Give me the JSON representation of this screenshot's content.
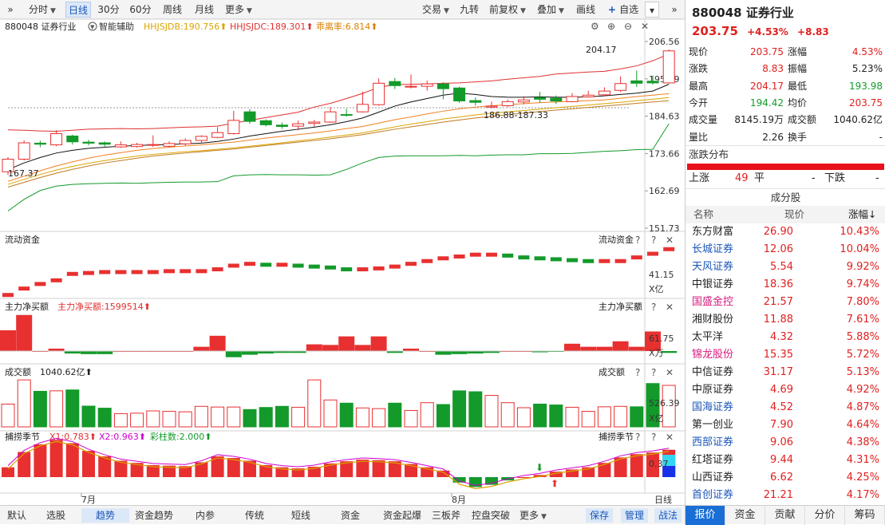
{
  "toolbar": {
    "left": [
      {
        "label": "分时",
        "caret": true
      },
      {
        "label": "日线",
        "active": true
      },
      {
        "label": "30分"
      },
      {
        "label": "60分"
      },
      {
        "label": "周线"
      },
      {
        "label": "月线"
      },
      {
        "label": "更多",
        "caret": true
      }
    ],
    "right": [
      {
        "label": "交易",
        "caret": true
      },
      {
        "label": "九转"
      },
      {
        "label": "前复权",
        "caret": true
      },
      {
        "label": "叠加",
        "caret": true
      },
      {
        "label": "画线"
      },
      {
        "label": "自选",
        "plus": true
      }
    ]
  },
  "kline": {
    "legend": {
      "name": "880048 证券行业",
      "assist": "智能辅助",
      "ma1": "HHJSJDB:190.756",
      "ma2": "HHJSJDC:189.301",
      "ma3": "乖离率:6.814"
    },
    "yticks": [
      "206.56",
      "195.59",
      "184.63",
      "173.66",
      "162.69",
      "151.73"
    ],
    "high_label": "204.17",
    "low_label": "167.37",
    "mid_label": "186.88-187.33",
    "candles": [
      [
        168.3,
        172.0,
        172.6,
        167.4
      ],
      [
        172.0,
        176.8,
        177.5,
        171.6
      ],
      [
        176.7,
        176.4,
        177.4,
        175.5
      ],
      [
        176.2,
        179.5,
        180.5,
        175.8
      ],
      [
        178.8,
        177.1,
        179.2,
        176.3
      ],
      [
        177.0,
        176.7,
        177.7,
        176.0
      ],
      [
        176.8,
        176.4,
        177.2,
        175.7
      ],
      [
        175.6,
        176.2,
        177.2,
        175.3
      ],
      [
        175.7,
        176.3,
        176.8,
        175.4
      ],
      [
        176.2,
        176.3,
        179.0,
        175.6
      ],
      [
        175.8,
        176.6,
        177.2,
        175.4
      ],
      [
        176.5,
        177.5,
        178.1,
        176.0
      ],
      [
        177.5,
        178.7,
        179.0,
        176.5
      ],
      [
        178.4,
        179.8,
        181.4,
        178.1
      ],
      [
        179.5,
        183.4,
        186.2,
        179.2
      ],
      [
        185.9,
        183.1,
        186.7,
        182.4
      ],
      [
        183.3,
        182.1,
        183.7,
        181.6
      ],
      [
        182.0,
        181.6,
        182.8,
        180.9
      ],
      [
        181.7,
        182.4,
        183.3,
        180.5
      ],
      [
        182.5,
        182.9,
        183.5,
        181.6
      ],
      [
        182.9,
        185.9,
        187.3,
        182.7
      ],
      [
        185.1,
        185.0,
        186.8,
        184.5
      ],
      [
        185.9,
        188.1,
        191.9,
        185.7
      ],
      [
        188.0,
        194.3,
        195.7,
        187.7
      ],
      [
        194.8,
        193.6,
        195.9,
        192.6
      ],
      [
        193.3,
        193.4,
        196.9,
        192.8
      ],
      [
        193.4,
        194.1,
        195.1,
        192.1
      ],
      [
        194.1,
        192.7,
        194.6,
        189.6
      ],
      [
        192.9,
        189.1,
        193.3,
        188.5
      ],
      [
        189.2,
        188.7,
        190.1,
        187.8
      ],
      [
        187.3,
        187.6,
        188.9,
        186.9
      ],
      [
        187.7,
        188.9,
        189.5,
        187.3
      ],
      [
        188.8,
        189.4,
        190.5,
        188.1
      ],
      [
        190.1,
        189.6,
        191.8,
        188.6
      ],
      [
        189.9,
        189.1,
        190.7,
        188.2
      ],
      [
        188.9,
        190.4,
        191.4,
        188.7
      ],
      [
        190.3,
        190.8,
        192.1,
        190.1
      ],
      [
        190.9,
        192.0,
        193.1,
        190.5
      ],
      [
        192.2,
        194.2,
        196.3,
        191.7
      ],
      [
        195.0,
        194.3,
        198.0,
        193.2
      ],
      [
        194.9,
        194.4,
        196.5,
        193.9
      ],
      [
        194.4,
        203.8,
        204.2,
        194.2
      ]
    ],
    "upper_band": [
      180.6,
      180.5,
      180.3,
      180.2,
      180.5,
      180.8,
      180.9,
      181.0,
      180.9,
      181.0,
      181.2,
      181.4,
      181.5,
      181.7,
      182.6,
      183.4,
      184.2,
      185.0,
      185.8,
      187.3,
      188.4,
      189.8,
      191.3,
      193.1,
      193.9,
      194.0,
      194.1,
      194.3,
      194.4,
      194.7,
      195.0,
      195.5,
      195.9,
      196.3,
      197.0,
      197.3,
      197.6,
      197.8,
      198.5,
      199.4,
      200.9,
      202.9
    ],
    "ma_black": [
      168.9,
      170.9,
      172.5,
      173.8,
      174.6,
      175.2,
      175.5,
      175.8,
      176.0,
      176.2,
      176.3,
      176.5,
      176.7,
      177.2,
      177.9,
      178.8,
      179.5,
      180.2,
      180.8,
      181.4,
      182.1,
      183.0,
      184.1,
      185.8,
      187.6,
      188.8,
      189.8,
      190.8,
      191.4,
      191.0,
      190.4,
      190.2,
      190.2,
      190.3,
      190.2,
      190.2,
      190.3,
      190.6,
      191.0,
      191.4,
      192.0,
      194.0
    ],
    "ma_orange": [
      165.5,
      167.0,
      168.6,
      170.0,
      171.2,
      172.3,
      173.2,
      173.9,
      174.6,
      175.1,
      175.5,
      175.9,
      176.2,
      176.6,
      177.0,
      177.6,
      178.2,
      178.7,
      179.2,
      179.7,
      180.3,
      181.0,
      181.6,
      182.6,
      183.6,
      184.4,
      185.3,
      186.1,
      186.8,
      187.3,
      187.7,
      188.0,
      188.3,
      188.6,
      188.8,
      189.0,
      189.2,
      189.4,
      189.9,
      190.4,
      190.8,
      191.2
    ],
    "ma_gold": [
      164.6,
      166.1,
      167.5,
      168.8,
      169.9,
      170.8,
      171.6,
      172.3,
      172.9,
      173.4,
      173.8,
      174.2,
      174.5,
      174.9,
      175.3,
      175.8,
      176.3,
      176.8,
      177.4,
      177.9,
      178.5,
      179.1,
      179.7,
      180.6,
      181.5,
      182.3,
      183.0,
      183.8,
      184.4,
      185.0,
      185.5,
      185.9,
      186.3,
      186.7,
      187.1,
      187.5,
      187.9,
      188.3,
      188.7,
      189.2,
      189.6,
      190.1
    ],
    "ma_brown": [
      163.8,
      165.2,
      166.6,
      167.9,
      169.0,
      170.0,
      170.9,
      171.6,
      172.3,
      172.9,
      173.4,
      173.8,
      174.2,
      174.6,
      175.0,
      175.5,
      176.0,
      176.5,
      177.0,
      177.5,
      178.0,
      178.6,
      179.2,
      180.0,
      180.8,
      181.5,
      182.2,
      182.9,
      183.5,
      184.1,
      184.6,
      185.1,
      185.5,
      186.0,
      186.4,
      186.8,
      187.2,
      187.6,
      188.0,
      188.4,
      188.8,
      189.2
    ],
    "lower_band": [
      156.8,
      160.2,
      162.8,
      164.1,
      164.6,
      164.8,
      164.9,
      165.0,
      164.9,
      165.1,
      165.2,
      165.3,
      165.3,
      165.4,
      167.1,
      167.4,
      167.5,
      167.4,
      167.4,
      167.3,
      167.4,
      169.0,
      170.9,
      172.5,
      172.9,
      173.0,
      173.0,
      173.0,
      173.1,
      173.0,
      173.2,
      173.3,
      173.3,
      173.6,
      173.6,
      173.7,
      174.0,
      174.3,
      174.5,
      174.8,
      174.9,
      182.4
    ],
    "dashed_level": 187.1
  },
  "flow": {
    "title": "流动资金",
    "title_right": "流动资金",
    "val": "41.15",
    "unit": "X亿",
    "values": [
      -1.0,
      -0.3,
      0.2,
      0.6,
      1.3,
      1.4,
      1.5,
      1.5,
      1.5,
      1.5,
      1.6,
      1.6,
      1.6,
      1.8,
      2.2,
      2.4,
      2.3,
      2.3,
      2.2,
      2.1,
      2.0,
      1.8,
      1.8,
      1.9,
      2.1,
      2.4,
      2.7,
      3.0,
      3.2,
      3.4,
      3.4,
      3.3,
      3.1,
      3.0,
      2.9,
      2.8,
      2.7,
      2.7,
      2.7,
      3.1,
      3.5,
      4.0
    ]
  },
  "mainflow": {
    "title": "主力净买额",
    "label": "主力净买额:1599514",
    "title_right": "主力净买额",
    "val": "61.75",
    "unit": "X万",
    "values": [
      34,
      59,
      0,
      4,
      -4,
      -5,
      -5,
      0,
      0,
      0,
      0,
      0,
      7,
      25,
      -10,
      -6,
      -4,
      -3,
      -3,
      11,
      10,
      24,
      10,
      24,
      -3,
      4,
      0,
      -6,
      -5,
      -4,
      -3,
      0,
      0,
      -2,
      -1,
      12,
      7,
      7,
      16,
      7,
      32,
      -3
    ]
  },
  "volume": {
    "title": "成交额",
    "label": "1040.62亿",
    "title_right": "成交额",
    "val": "526.39",
    "unit": "X亿",
    "values": [
      500,
      1030,
      780,
      790,
      810,
      455,
      410,
      290,
      300,
      350,
      340,
      330,
      450,
      435,
      435,
      380,
      425,
      450,
      430,
      1030,
      590,
      520,
      415,
      400,
      520,
      360,
      530,
      490,
      790,
      770,
      690,
      530,
      420,
      500,
      480,
      430,
      340,
      440,
      450,
      440,
      950,
      910
    ]
  },
  "season": {
    "title": "捕捞季节",
    "x1": "X1:0.783",
    "x2": "X2:0.963",
    "bar": "彩柱数:2.000",
    "title_right": "捕捞季节",
    "val": "0.37",
    "values": [
      0.18,
      0.46,
      0.6,
      0.68,
      0.62,
      0.48,
      0.38,
      0.3,
      0.26,
      0.22,
      0.21,
      0.2,
      0.27,
      0.38,
      0.35,
      0.3,
      0.22,
      0.18,
      0.16,
      0.19,
      0.25,
      0.29,
      0.32,
      0.31,
      0.29,
      0.24,
      0.18,
      0.12,
      -0.1,
      -0.18,
      -0.14,
      -0.06,
      0.0,
      0.04,
      0.1,
      0.14,
      0.18,
      0.26,
      0.36,
      0.42,
      0.45,
      0.5
    ]
  },
  "xaxis": {
    "m1": "7月",
    "m2": "8月",
    "period": "日线"
  },
  "bottom_tabs": [
    "默认",
    "选股",
    "趋势",
    "资金趋势",
    "内参",
    "传统",
    "短线",
    "资金",
    "资金起爆",
    "三板斧",
    "控盘突破",
    "更多"
  ],
  "bottom_right": [
    "保存",
    "管理",
    "战法"
  ],
  "stock": {
    "code_name": "880048 证券行业",
    "price": "203.75",
    "pct": "+4.53%",
    "chg": "+8.83"
  },
  "quote": [
    [
      "现价",
      "203.75",
      "red",
      "涨幅",
      "4.53%",
      "red"
    ],
    [
      "涨跌",
      "8.83",
      "red",
      "振幅",
      "5.23%",
      "black"
    ],
    [
      "最高",
      "204.17",
      "red",
      "最低",
      "193.98",
      "green"
    ],
    [
      "今开",
      "194.42",
      "green",
      "均价",
      "203.75",
      "red"
    ],
    [
      "成交量",
      "8145.19万",
      "black",
      "成交额",
      "1040.62亿",
      "black"
    ],
    [
      "量比",
      "2.26",
      "black",
      "换手",
      "-",
      "black"
    ]
  ],
  "dist": {
    "title": "涨跌分布",
    "up_label": "上涨",
    "up": "49",
    "flat_label": "平",
    "flat": "-",
    "down_label": "下跌",
    "down": "-"
  },
  "components": {
    "title": "成分股",
    "headers": [
      "名称",
      "现价",
      "涨幅↓"
    ],
    "rows": [
      [
        "东方财富",
        "26.90",
        "10.43%",
        "black"
      ],
      [
        "长城证券",
        "12.06",
        "10.04%",
        "blue"
      ],
      [
        "天风证券",
        "5.54",
        "9.92%",
        "blue"
      ],
      [
        "中银证券",
        "18.36",
        "9.74%",
        "black"
      ],
      [
        "国盛金控",
        "21.57",
        "7.80%",
        "pink"
      ],
      [
        "湘财股份",
        "11.88",
        "7.61%",
        "black"
      ],
      [
        "太平洋",
        "4.32",
        "5.88%",
        "black"
      ],
      [
        "锦龙股份",
        "15.35",
        "5.72%",
        "pink"
      ],
      [
        "中信证券",
        "31.17",
        "5.13%",
        "black"
      ],
      [
        "中原证券",
        "4.69",
        "4.92%",
        "black"
      ],
      [
        "国海证券",
        "4.52",
        "4.87%",
        "blue"
      ],
      [
        "第一创业",
        "7.90",
        "4.64%",
        "black"
      ],
      [
        "西部证券",
        "9.06",
        "4.38%",
        "blue"
      ],
      [
        "红塔证券",
        "9.44",
        "4.31%",
        "black"
      ],
      [
        "山西证券",
        "6.62",
        "4.25%",
        "black"
      ],
      [
        "首创证券",
        "21.21",
        "4.17%",
        "blue"
      ]
    ]
  },
  "right_tabs": [
    "报价",
    "资金",
    "贡献",
    "分价",
    "筹码"
  ],
  "colors": {
    "up": "#e83030",
    "down": "#139a2a",
    "accent": "#1a6fd6"
  }
}
